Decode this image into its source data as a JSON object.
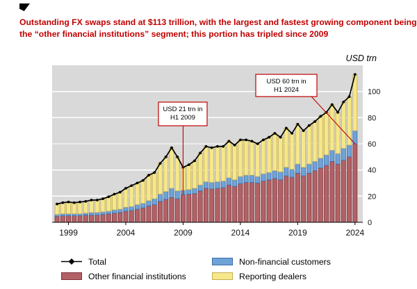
{
  "header": {
    "line1": "Outstanding FX swaps stand at $113 trillion, with the largest and fastest growing component being",
    "line2": "the “other financial institutions” segment; this portion has tripled since 2009",
    "accent_color": "#c00000"
  },
  "chart_data": {
    "type": "bar",
    "stacked": true,
    "overlay_line": "Total",
    "unit_label": "USD trn",
    "ylim": [
      0,
      120
    ],
    "y_ticks": [
      0,
      20,
      40,
      60,
      80,
      100
    ],
    "x_tick_years": [
      1999,
      2004,
      2009,
      2014,
      2019,
      2024
    ],
    "grid": true,
    "legend_position": "bottom",
    "colors": {
      "panel_bg": "#d9d9d9",
      "grid_line": "#ffffff",
      "axis_line": "#000000",
      "total_line": "#000000",
      "annotation": "#c00000",
      "tick_text": "#111111"
    },
    "x_periods": [
      "1998 H1",
      "1998 H2",
      "1999 H1",
      "1999 H2",
      "2000 H1",
      "2000 H2",
      "2001 H1",
      "2001 H2",
      "2002 H1",
      "2002 H2",
      "2003 H1",
      "2003 H2",
      "2004 H1",
      "2004 H2",
      "2005 H1",
      "2005 H2",
      "2006 H1",
      "2006 H2",
      "2007 H1",
      "2007 H2",
      "2008 H1",
      "2008 H2",
      "2009 H1",
      "2009 H2",
      "2010 H1",
      "2010 H2",
      "2011 H1",
      "2011 H2",
      "2012 H1",
      "2012 H2",
      "2013 H1",
      "2013 H2",
      "2014 H1",
      "2014 H2",
      "2015 H1",
      "2015 H2",
      "2016 H1",
      "2016 H2",
      "2017 H1",
      "2017 H2",
      "2018 H1",
      "2018 H2",
      "2019 H1",
      "2019 H2",
      "2020 H1",
      "2020 H2",
      "2021 H1",
      "2021 H2",
      "2022 H1",
      "2022 H2",
      "2023 H1",
      "2023 H2",
      "2024 H1"
    ],
    "series": [
      {
        "name": "Other financial institutions",
        "color": "#b26266",
        "border": "#7d3138",
        "values": [
          4.5,
          5.0,
          5.0,
          5.0,
          5.0,
          5.5,
          5.5,
          5.5,
          6.0,
          6.5,
          7.0,
          7.5,
          8.5,
          9.0,
          10.0,
          11.0,
          12.5,
          13.5,
          16.0,
          17.5,
          19.0,
          18.0,
          21.0,
          21.5,
          22.0,
          24.0,
          26.0,
          25.5,
          26.0,
          26.5,
          28.5,
          27.5,
          29.5,
          30.5,
          30.5,
          30.0,
          31.5,
          32.5,
          33.5,
          32.5,
          35.5,
          34.5,
          37.5,
          35.5,
          37.5,
          39.5,
          41.5,
          43.5,
          46.5,
          44.5,
          47.5,
          50.0,
          60.0
        ]
      },
      {
        "name": "Non-financial customers",
        "color": "#6fa3d8",
        "border": "#3c6ea5",
        "values": [
          1.5,
          1.5,
          1.5,
          1.5,
          1.5,
          1.5,
          2.0,
          2.0,
          2.0,
          2.0,
          2.5,
          2.5,
          3.0,
          3.0,
          3.5,
          3.5,
          4.0,
          4.5,
          5.5,
          6.0,
          7.0,
          6.0,
          3.5,
          3.5,
          4.0,
          4.5,
          5.0,
          5.0,
          5.0,
          5.0,
          5.5,
          5.0,
          5.5,
          5.5,
          5.5,
          5.0,
          5.5,
          5.5,
          6.0,
          6.0,
          6.5,
          6.0,
          7.0,
          6.5,
          7.0,
          7.0,
          7.5,
          8.0,
          8.5,
          8.0,
          9.0,
          9.0,
          10.0
        ]
      },
      {
        "name": "Reporting dealers",
        "color": "#f6e88a",
        "border": "#c3ad54",
        "values": [
          8.0,
          8.5,
          9.0,
          8.5,
          9.0,
          9.0,
          9.5,
          9.5,
          10.0,
          11.0,
          12.0,
          13.0,
          14.5,
          16.0,
          16.5,
          17.5,
          19.5,
          20.0,
          23.5,
          26.5,
          31.0,
          26.0,
          17.5,
          19.0,
          21.0,
          24.5,
          27.0,
          26.5,
          27.0,
          26.5,
          28.0,
          26.5,
          28.0,
          27.0,
          26.0,
          25.0,
          26.0,
          27.0,
          28.5,
          26.5,
          30.0,
          27.5,
          30.5,
          28.0,
          29.5,
          30.5,
          32.0,
          32.5,
          35.0,
          31.5,
          35.5,
          37.0,
          43.0
        ]
      }
    ],
    "total_series_name": "Total",
    "totals_are_sum_of_series": true,
    "annotations": [
      {
        "text_lines": [
          "USD 21 trn in",
          "H1 2009"
        ],
        "target_period": "2009 H1",
        "target_value": 21
      },
      {
        "text_lines": [
          "USD 60 trn in",
          "H1 2024"
        ],
        "target_period": "2024 H1",
        "target_value": 60
      }
    ]
  },
  "legend": {
    "items": [
      {
        "label": "Total",
        "type": "line",
        "color": "#000000",
        "border": "#000000"
      },
      {
        "label": "Other financial institutions",
        "type": "box",
        "color": "#b26266",
        "border": "#7d3138"
      },
      {
        "label": "Non-financial customers",
        "type": "box",
        "color": "#6fa3d8",
        "border": "#3c6ea5"
      },
      {
        "label": "Reporting dealers",
        "type": "box",
        "color": "#f6e88a",
        "border": "#c3ad54"
      }
    ]
  }
}
